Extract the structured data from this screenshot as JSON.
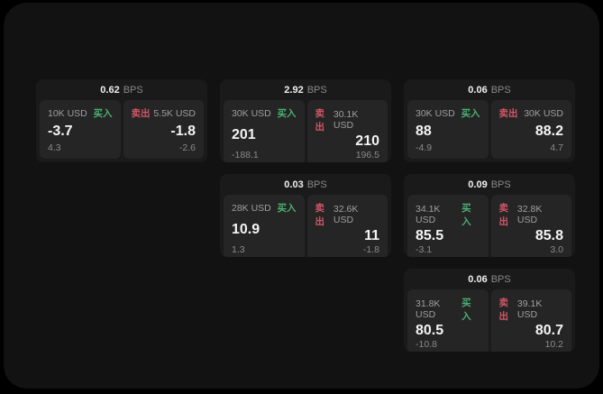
{
  "labels": {
    "bps_unit": "BPS",
    "buy": "买入",
    "sell": "卖出"
  },
  "colors": {
    "buy": "#4caf72",
    "sell": "#d15666",
    "background": "#121212",
    "card": "#1a1a1a",
    "panel": "#252525"
  },
  "cards": [
    {
      "bps": "0.62",
      "buy": {
        "amount": "10K USD",
        "price": "-3.7",
        "delta": "4.3"
      },
      "sell": {
        "amount": "5.5K USD",
        "price": "-1.8",
        "delta": "-2.6"
      }
    },
    {
      "bps": "2.92",
      "buy": {
        "amount": "30K USD",
        "price": "201",
        "delta": "-188.1"
      },
      "sell": {
        "amount": "30.1K USD",
        "price": "210",
        "delta": "196.5"
      }
    },
    {
      "bps": "0.06",
      "buy": {
        "amount": "30K USD",
        "price": "88",
        "delta": "-4.9"
      },
      "sell": {
        "amount": "30K USD",
        "price": "88.2",
        "delta": "4.7"
      }
    },
    {
      "bps": "0.03",
      "buy": {
        "amount": "28K USD",
        "price": "10.9",
        "delta": "1.3"
      },
      "sell": {
        "amount": "32.6K USD",
        "price": "11",
        "delta": "-1.8"
      }
    },
    {
      "bps": "0.09",
      "buy": {
        "amount": "34.1K USD",
        "price": "85.5",
        "delta": "-3.1"
      },
      "sell": {
        "amount": "32.8K USD",
        "price": "85.8",
        "delta": "3.0"
      }
    },
    {
      "bps": "0.06",
      "buy": {
        "amount": "31.8K USD",
        "price": "80.5",
        "delta": "-10.8"
      },
      "sell": {
        "amount": "39.1K USD",
        "price": "80.7",
        "delta": "10.2"
      }
    }
  ]
}
